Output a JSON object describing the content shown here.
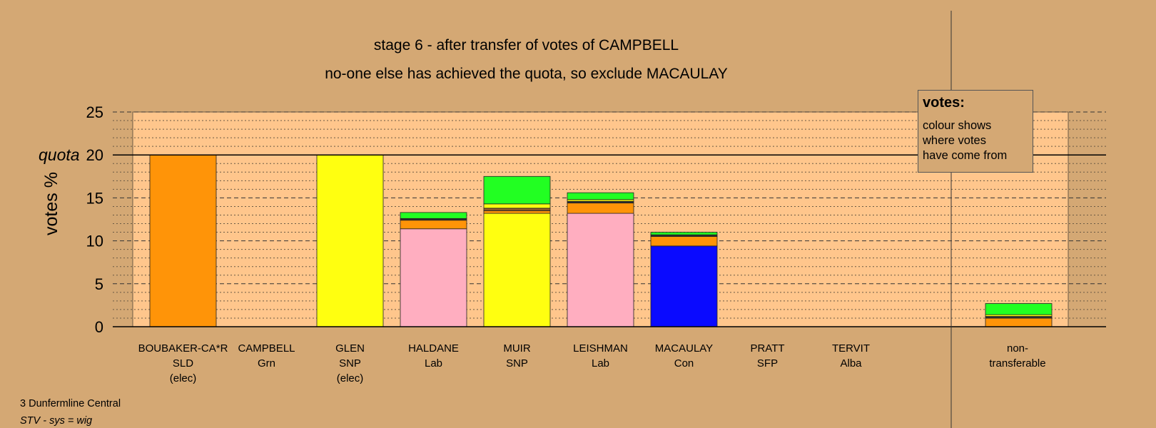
{
  "chart_data": {
    "type": "bar",
    "stacked": true,
    "title": "stage 6 - after transfer of votes of CAMPBELL",
    "subtitle": "no-one else has achieved the quota, so exclude MACAULAY",
    "ylabel": "votes %",
    "ylim": [
      0,
      25
    ],
    "yticks": [
      "0",
      "5",
      "10",
      "15",
      "20",
      "25"
    ],
    "quota_label": "quota",
    "quota_value": 20,
    "grid": "horizontal dashed major, dotted minor",
    "legend_title": "votes:",
    "legend_lines": [
      "colour shows",
      "where votes",
      "have come from"
    ],
    "candidates": [
      {
        "name": "BOUBAKER-CA*R",
        "party": "SLD",
        "status": "(elec)",
        "segments": [
          {
            "color": "#ff9408",
            "value": 20
          }
        ]
      },
      {
        "name": "CAMPBELL",
        "party": "Grn",
        "status": "",
        "segments": []
      },
      {
        "name": "GLEN",
        "party": "SNP",
        "status": "(elec)",
        "segments": [
          {
            "color": "#ffff10",
            "value": 20
          }
        ]
      },
      {
        "name": "HALDANE",
        "party": "Lab",
        "status": "",
        "segments": [
          {
            "color": "#ffaec0",
            "value": 11.4
          },
          {
            "color": "#ff9408",
            "value": 1.0
          },
          {
            "color": "#2d2d2d",
            "value": 0.2
          },
          {
            "color": "#22ff22",
            "value": 0.7
          }
        ]
      },
      {
        "name": "MUIR",
        "party": "SNP",
        "status": "",
        "segments": [
          {
            "color": "#ffff10",
            "value": 13.2
          },
          {
            "color": "#ff9408",
            "value": 0.3
          },
          {
            "color": "#8b5a2b",
            "value": 0.3
          },
          {
            "color": "#ffff10",
            "value": 0.5
          },
          {
            "color": "#22ff22",
            "value": 3.2
          }
        ]
      },
      {
        "name": "LEISHMAN",
        "party": "Lab",
        "status": "",
        "segments": [
          {
            "color": "#ffaec0",
            "value": 13.2
          },
          {
            "color": "#ff9408",
            "value": 1.2
          },
          {
            "color": "#2d2d2d",
            "value": 0.2
          },
          {
            "color": "#ffff10",
            "value": 0.2
          },
          {
            "color": "#22ff22",
            "value": 0.8
          }
        ]
      },
      {
        "name": "MACAULAY",
        "party": "Con",
        "status": "",
        "segments": [
          {
            "color": "#0a0aff",
            "value": 9.4
          },
          {
            "color": "#ff9408",
            "value": 1.1
          },
          {
            "color": "#2d2d2d",
            "value": 0.2
          },
          {
            "color": "#22ff22",
            "value": 0.3
          }
        ]
      },
      {
        "name": "PRATT",
        "party": "SFP",
        "status": "",
        "segments": []
      },
      {
        "name": "TERVIT",
        "party": "Alba",
        "status": "",
        "segments": []
      }
    ],
    "nontransferable": {
      "label_line1": "non-",
      "label_line2": "transferable",
      "segments": [
        {
          "color": "#ff9408",
          "value": 1.0
        },
        {
          "color": "#2d2d2d",
          "value": 0.2
        },
        {
          "color": "#ffff10",
          "value": 0.2
        },
        {
          "color": "#22ff22",
          "value": 1.3
        }
      ]
    }
  },
  "footer": {
    "constituency": "3 Dunfermline Central",
    "system": "STV - sys = wig"
  }
}
